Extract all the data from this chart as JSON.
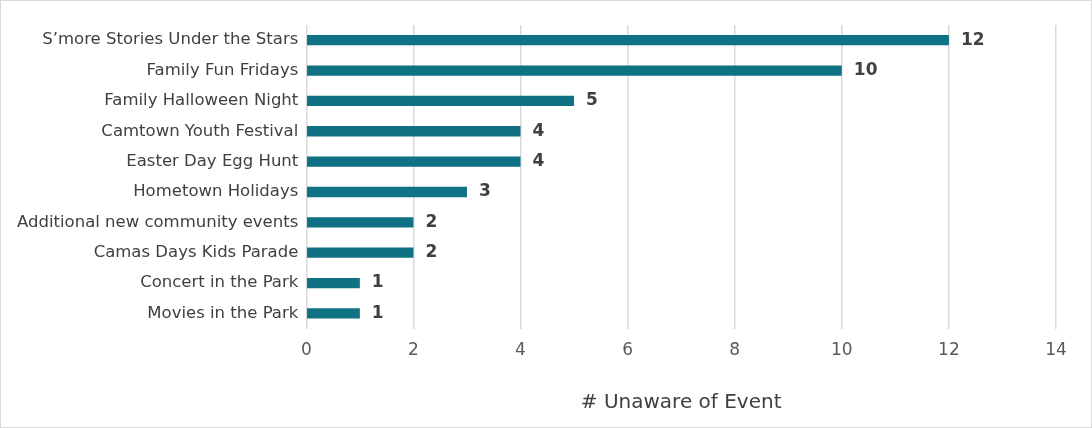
{
  "chart_data": {
    "type": "bar",
    "orientation": "horizontal",
    "xlabel": "# Unaware of Event",
    "categories": [
      "S’more Stories Under the Stars",
      "Family Fun Fridays",
      "Family Halloween Night",
      "Camtown Youth Festival",
      "Easter Day Egg Hunt",
      "Hometown Holidays",
      "Additional new community events",
      "Camas Days Kids Parade",
      "Concert in the Park",
      "Movies in the Park"
    ],
    "values": [
      12,
      10,
      5,
      4,
      4,
      3,
      2,
      2,
      1,
      1
    ],
    "color": "#0e7184",
    "xlim": [
      0,
      14
    ],
    "xticks": [
      0,
      2,
      4,
      6,
      8,
      10,
      12,
      14
    ],
    "grid": "x",
    "legend": false,
    "data_labels": true
  }
}
